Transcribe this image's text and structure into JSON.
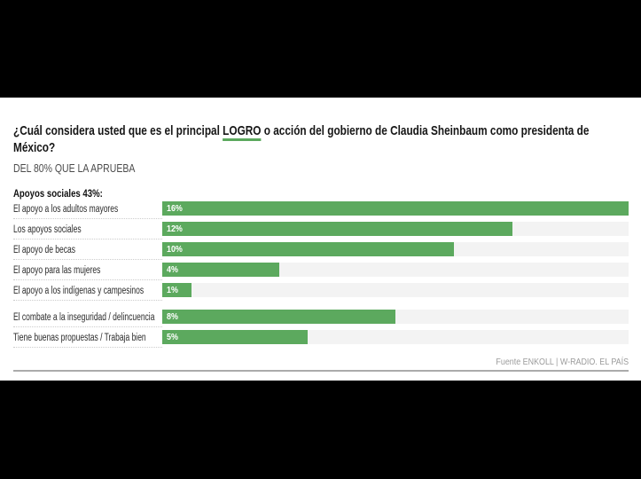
{
  "page": {
    "background": "#000000",
    "card_background": "#ffffff"
  },
  "header": {
    "title_pre": "¿Cuál considera usted que es el principal ",
    "title_highlight": "LOGRO",
    "title_post": " o acción del gobierno de Claudia Sheinbaum como presidenta de México?",
    "subtitle": "DEL 80% QUE LA APRUEBA"
  },
  "chart": {
    "max_value": 16,
    "groups": [
      {
        "label": "Apoyos sociales 43%:",
        "rows": [
          {
            "label": "El apoyo a los adultos mayores",
            "value": 16,
            "value_label": "16%"
          },
          {
            "label": "Los apoyos sociales",
            "value": 12,
            "value_label": "12%"
          },
          {
            "label": "El apoyo de becas",
            "value": 10,
            "value_label": "10%"
          },
          {
            "label": "El apoyo para las mujeres",
            "value": 4,
            "value_label": "4%"
          },
          {
            "label": "El apoyo a los indígenas y campesinos",
            "value": 1,
            "value_label": "1%"
          }
        ]
      },
      {
        "label": "",
        "rows": [
          {
            "label": "El combate a la inseguridad / delincuencia",
            "value": 8,
            "value_label": "8%"
          },
          {
            "label": "Tiene buenas propuestas / Trabaja bien",
            "value": 5,
            "value_label": "5%"
          }
        ]
      }
    ]
  },
  "footer": {
    "source": "Fuente ENKOLL | W-RADIO. EL PAÍS"
  },
  "colors": {
    "bar_green": "#5CA95E",
    "underline_green": "#5CA95E",
    "track_gray": "#F3F3F3",
    "footer_text": "#9B9B9B"
  },
  "chart_data": {
    "type": "bar",
    "orientation": "horizontal",
    "title": "¿Cuál considera usted que es el principal LOGRO o acción del gobierno de Claudia Sheinbaum como presidenta de México?",
    "subtitle": "DEL 80% QUE LA APRUEBA",
    "group_label": "Apoyos sociales 43%:",
    "categories": [
      "El apoyo a los adultos mayores",
      "Los apoyos sociales",
      "El apoyo de becas",
      "El apoyo para las mujeres",
      "El apoyo a los indígenas y campesinos",
      "El combate a la inseguridad / delincuencia",
      "Tiene buenas propuestas / Trabaja bien"
    ],
    "values": [
      16,
      12,
      10,
      4,
      1,
      8,
      5
    ],
    "unit": "%",
    "xlim": [
      0,
      16
    ],
    "grid": false,
    "legend": false,
    "data_labels": "inside-left",
    "bar_color": "#5CA95E",
    "source": "Fuente ENKOLL | W-RADIO. EL PAÍS"
  }
}
